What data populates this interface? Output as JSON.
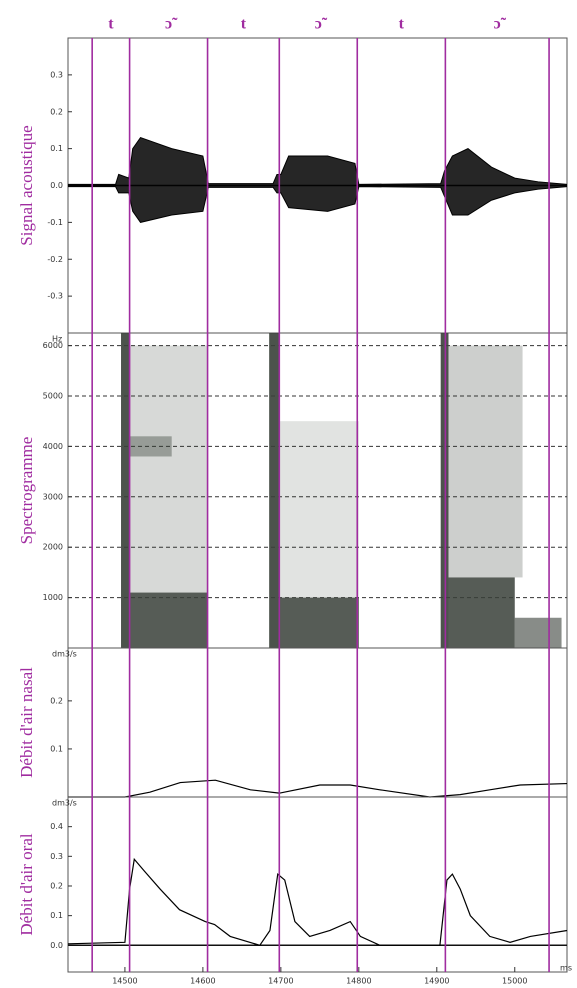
{
  "segments": {
    "labels": [
      "t",
      "ɔ̃",
      "t",
      "ɔ̃",
      "t",
      "ɔ̃"
    ],
    "boundaries": [
      14458,
      14506,
      14606,
      14698,
      14798,
      14911,
      15044
    ],
    "color": "#a02ca0"
  },
  "chart_data": [
    {
      "type": "area",
      "ylabel": "Signal acoustique",
      "ylim": [
        -0.4,
        0.4
      ],
      "yticks": [
        0.3,
        0.2,
        0.1,
        {
          "value": 0,
          "label": "0.0"
        },
        -0.1,
        -0.2,
        -0.3
      ],
      "x": [
        14427,
        14488,
        14492,
        14505,
        14510,
        14520,
        14560,
        14600,
        14607,
        14690,
        14695,
        14700,
        14710,
        14760,
        14795,
        14800,
        14905,
        14910,
        14920,
        14940,
        14970,
        15000,
        15030,
        15067
      ],
      "upper": [
        0.003,
        0.003,
        0.03,
        0.02,
        0.1,
        0.13,
        0.1,
        0.08,
        0.005,
        0.005,
        0.03,
        0.03,
        0.08,
        0.08,
        0.06,
        0.003,
        0.005,
        0.04,
        0.08,
        0.1,
        0.05,
        0.02,
        0.01,
        0.003
      ],
      "lower": [
        -0.003,
        -0.003,
        -0.02,
        -0.02,
        -0.07,
        -0.1,
        -0.08,
        -0.07,
        -0.005,
        -0.005,
        -0.02,
        -0.02,
        -0.06,
        -0.07,
        -0.05,
        -0.003,
        -0.005,
        -0.03,
        -0.08,
        -0.08,
        -0.04,
        -0.02,
        -0.01,
        -0.003
      ],
      "color": "#000000"
    },
    {
      "type": "heatmap",
      "ylabel": "Spectrogramme",
      "unit": "Hz",
      "ylim": [
        0,
        6250
      ],
      "yticks": [
        1000,
        2000,
        3000,
        4000,
        5000,
        6000
      ],
      "grid": true,
      "color": "#384038",
      "cells": [
        {
          "x": [
            14495,
            14506
          ],
          "f": [
            0,
            6250
          ],
          "level": 0.9
        },
        {
          "x": [
            14685,
            14697
          ],
          "f": [
            0,
            6250
          ],
          "level": 0.9
        },
        {
          "x": [
            14905,
            14915
          ],
          "f": [
            0,
            6250
          ],
          "level": 0.9
        },
        {
          "x": [
            14506,
            14606
          ],
          "f": [
            1100,
            6000
          ],
          "level": 0.2
        },
        {
          "x": [
            14697,
            14800
          ],
          "f": [
            1000,
            4500
          ],
          "level": 0.15
        },
        {
          "x": [
            14915,
            15010
          ],
          "f": [
            1400,
            6000
          ],
          "level": 0.25
        },
        {
          "x": [
            14506,
            14560
          ],
          "f": [
            3800,
            4200
          ],
          "level": 0.4
        },
        {
          "x": [
            14506,
            14606
          ],
          "f": [
            0,
            1100
          ],
          "level": 0.85
        },
        {
          "x": [
            14697,
            14800
          ],
          "f": [
            0,
            1000
          ],
          "level": 0.85
        },
        {
          "x": [
            14915,
            15000
          ],
          "f": [
            0,
            1400
          ],
          "level": 0.85
        },
        {
          "x": [
            15000,
            15060
          ],
          "f": [
            0,
            600
          ],
          "level": 0.6
        }
      ]
    },
    {
      "type": "line",
      "ylabel": "Débit d'air nasal",
      "unit": "dm3/s",
      "ylim": [
        0,
        0.31
      ],
      "yticks": [
        0.2,
        0.1
      ],
      "color": "#000000",
      "x": [
        14427,
        14500,
        14532,
        14571,
        14616,
        14661,
        14698,
        14750,
        14789,
        14827,
        14891,
        14930,
        14968,
        15007,
        15067
      ],
      "values": [
        0,
        0,
        0.01,
        0.03,
        0.035,
        0.015,
        0.008,
        0.025,
        0.025,
        0.015,
        0,
        0.005,
        0.015,
        0.025,
        0.028
      ]
    },
    {
      "type": "line",
      "ylabel": "Débit d'air oral",
      "unit": "dm3/s",
      "x_unit": "ms",
      "ylim": [
        -0.09,
        0.5
      ],
      "yticks": [
        0.4,
        0.3,
        0.2,
        0.1,
        {
          "value": 0,
          "label": "0.0"
        }
      ],
      "color": "#000000",
      "xlim": [
        14427,
        15067
      ],
      "xticks": [
        14500,
        14600,
        14700,
        14800,
        14900,
        15000
      ],
      "x": [
        14427,
        14500,
        14506,
        14512,
        14525,
        14545,
        14570,
        14603,
        14615,
        14635,
        14673,
        14686,
        14696,
        14705,
        14718,
        14737,
        14763,
        14789,
        14802,
        14827,
        14904,
        14913,
        14920,
        14930,
        14943,
        14968,
        14994,
        15020,
        15067
      ],
      "values": [
        0.005,
        0.01,
        0.19,
        0.29,
        0.25,
        0.19,
        0.12,
        0.08,
        0.07,
        0.03,
        0,
        0.05,
        0.24,
        0.22,
        0.08,
        0.03,
        0.05,
        0.08,
        0.03,
        0,
        0,
        0.22,
        0.24,
        0.19,
        0.1,
        0.03,
        0.01,
        0.03,
        0.05
      ]
    }
  ]
}
